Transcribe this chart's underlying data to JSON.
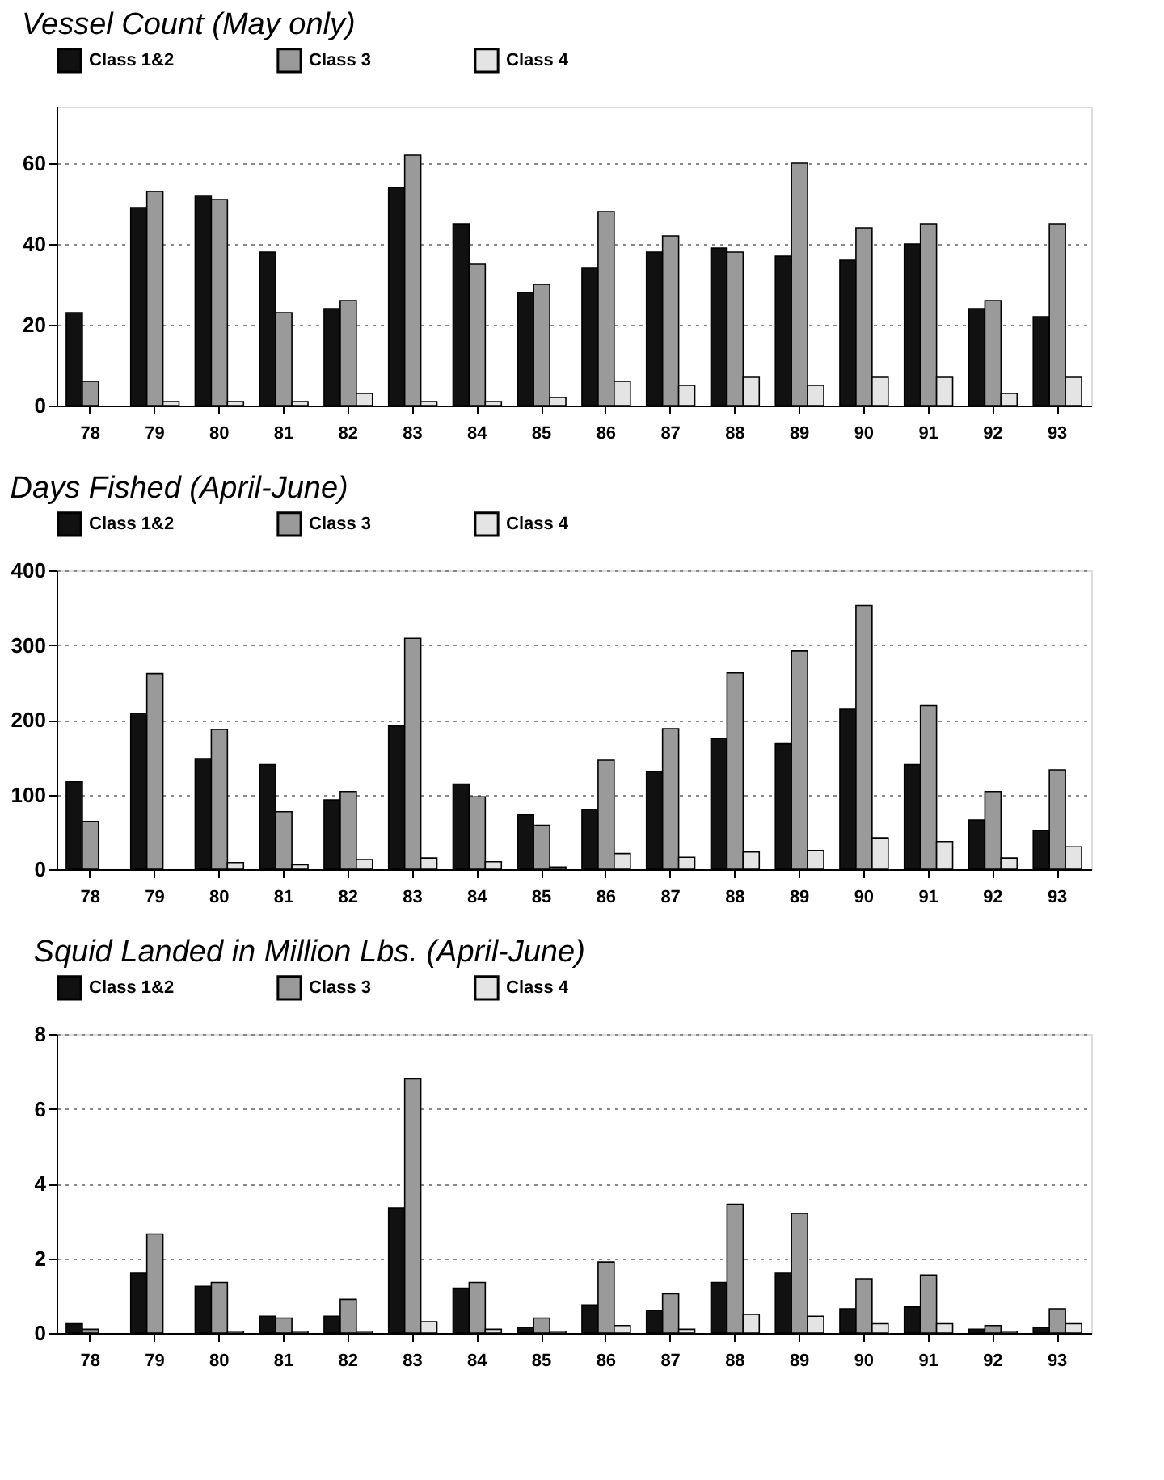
{
  "chart_data": [
    {
      "type": "bar",
      "title": "Vessel Count (May only)",
      "categories": [
        "78",
        "79",
        "80",
        "81",
        "82",
        "83",
        "84",
        "85",
        "86",
        "87",
        "88",
        "89",
        "90",
        "91",
        "92",
        "93"
      ],
      "series": [
        {
          "name": "Class 1&2",
          "color": "#111111",
          "values": [
            23,
            49,
            52,
            38,
            24,
            54,
            45,
            28,
            34,
            38,
            39,
            37,
            36,
            40,
            24,
            22
          ]
        },
        {
          "name": "Class 3",
          "color": "#9a9a9a",
          "values": [
            6,
            53,
            51,
            23,
            26,
            62,
            35,
            30,
            48,
            42,
            38,
            60,
            44,
            45,
            26,
            45
          ]
        },
        {
          "name": "Class 4",
          "color": "#e4e4e4",
          "values": [
            0,
            1,
            1,
            1,
            3,
            1,
            1,
            2,
            6,
            5,
            7,
            5,
            7,
            7,
            3,
            7
          ]
        }
      ],
      "ylim": [
        0,
        74
      ],
      "yticks": [
        0,
        20,
        40,
        60
      ],
      "grid": "y",
      "legend": "top"
    },
    {
      "type": "bar",
      "title": "Days Fished (April-June)",
      "categories": [
        "78",
        "79",
        "80",
        "81",
        "82",
        "83",
        "84",
        "85",
        "86",
        "87",
        "88",
        "89",
        "90",
        "91",
        "92",
        "93"
      ],
      "series": [
        {
          "name": "Class 1&2",
          "color": "#111111",
          "values": [
            117,
            209,
            148,
            140,
            93,
            192,
            114,
            73,
            80,
            131,
            175,
            168,
            214,
            140,
            66,
            52
          ]
        },
        {
          "name": "Class 3",
          "color": "#9a9a9a",
          "values": [
            64,
            262,
            187,
            77,
            104,
            309,
            97,
            59,
            146,
            188,
            263,
            292,
            353,
            219,
            104,
            133
          ]
        },
        {
          "name": "Class 4",
          "color": "#e4e4e4",
          "values": [
            null,
            null,
            9,
            6,
            13,
            15,
            10,
            3,
            21,
            16,
            23,
            25,
            42,
            37,
            15,
            30
          ]
        }
      ],
      "ylim": [
        0,
        400
      ],
      "yticks": [
        0,
        100,
        200,
        300,
        400
      ],
      "grid": "y",
      "legend": "top"
    },
    {
      "type": "bar",
      "title": "Squid Landed in Million Lbs. (April-June)",
      "categories": [
        "78",
        "79",
        "80",
        "81",
        "82",
        "83",
        "84",
        "85",
        "86",
        "87",
        "88",
        "89",
        "90",
        "91",
        "92",
        "93"
      ],
      "series": [
        {
          "name": "Class 1&2",
          "color": "#111111",
          "values": [
            0.25,
            1.6,
            1.25,
            0.45,
            0.45,
            3.35,
            1.2,
            0.15,
            0.75,
            0.6,
            1.35,
            1.6,
            0.65,
            0.7,
            0.1,
            0.15
          ]
        },
        {
          "name": "Class 3",
          "color": "#9a9a9a",
          "values": [
            0.1,
            2.65,
            1.35,
            0.4,
            0.9,
            6.8,
            1.35,
            0.4,
            1.9,
            1.05,
            3.45,
            3.2,
            1.45,
            1.55,
            0.2,
            0.65
          ]
        },
        {
          "name": "Class 4",
          "color": "#e4e4e4",
          "values": [
            0,
            0,
            0.05,
            0.05,
            0.05,
            0.3,
            0.1,
            0.05,
            0.2,
            0.1,
            0.5,
            0.45,
            0.25,
            0.25,
            0.05,
            0.25
          ]
        }
      ],
      "ylim": [
        0,
        8
      ],
      "yticks": [
        0,
        2,
        4,
        6,
        8
      ],
      "grid": "y",
      "legend": "top"
    }
  ]
}
